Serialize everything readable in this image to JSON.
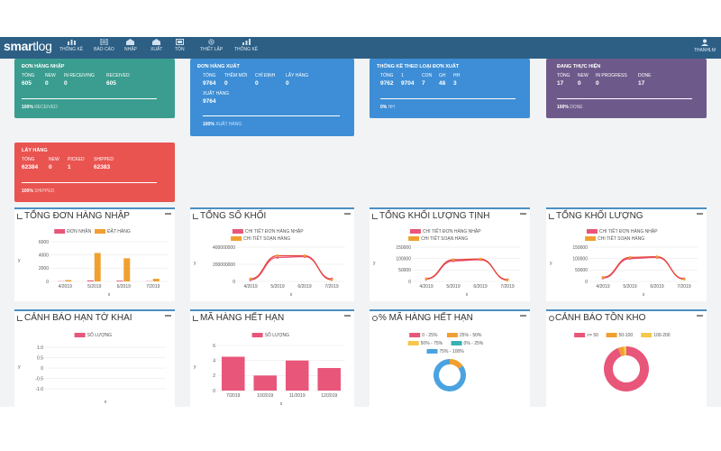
{
  "topbar": {
    "logo_main": "smar",
    "logo_tail": "tlog",
    "nav": [
      "THỐNG KÊ",
      "BÁO CÁO",
      "NHẬP",
      "XUẤT",
      "TỒN",
      "THIẾT LẬP",
      "THỐNG KÊ"
    ],
    "user": "THANHLM"
  },
  "cards": {
    "nhap": {
      "title": "ĐƠN HÀNG NHẬP",
      "labels": [
        "TỔNG",
        "NEW",
        "IN RECEIVING",
        "RECEIVED"
      ],
      "values": [
        "605",
        "0",
        "0",
        "605"
      ],
      "percent": "100%",
      "status": "RECEIVED",
      "color": "#3a9d8f"
    },
    "xuat": {
      "title": "ĐƠN HÀNG XUẤT",
      "labels": [
        "TỔNG",
        "THÊM MỚI",
        "CHỈ ĐỊNH",
        "LẤY HÀNG"
      ],
      "values": [
        "9764",
        "0",
        "0",
        "0"
      ],
      "extra_label": "XUẤT HÀNG",
      "extra_value": "9764",
      "percent": "100%",
      "status": "XUẤT HÀNG",
      "color": "#3d8ed6"
    },
    "loai": {
      "title": "THỐNG KÊ THEO LOẠI ĐƠN XUẤT",
      "labels": [
        "TỔNG",
        "1",
        "CON",
        "GH",
        "HH"
      ],
      "values": [
        "9762",
        "9704",
        "7",
        "48",
        "3"
      ],
      "percent": "0%",
      "status": "HH",
      "color": "#3d8ed6"
    },
    "thuchien": {
      "title": "ĐANG THỰC HIỆN",
      "labels": [
        "TỔNG",
        "NEW",
        "IN PROGRESS",
        "DONE"
      ],
      "values": [
        "17",
        "0",
        "0",
        "17"
      ],
      "percent": "100%",
      "status": "DONE",
      "color": "#6e5a8a"
    },
    "layhang": {
      "title": "LẤY HÀNG",
      "labels": [
        "TỔNG",
        "NEW",
        "PICKED",
        "SHIPPED"
      ],
      "values": [
        "62384",
        "0",
        "1",
        "62383"
      ],
      "percent": "100%",
      "status": "SHIPPED",
      "color": "#e95451"
    }
  },
  "colors": {
    "pink": "#e8567a",
    "orange": "#f0a030",
    "red_line": "#e5443a",
    "teal": "#38b2b0",
    "blue": "#4aa3e0",
    "yellow": "#f5c84a"
  },
  "panels": {
    "nhap": {
      "title": "TỔNG ĐƠN HÀNG NHẬP",
      "legend": [
        "ĐƠN NHẬN",
        "ĐẶT HÀNG"
      ],
      "yaxis": "y",
      "xaxis": "x"
    },
    "khoi": {
      "title": "TỔNG SỐ KHỐI",
      "legend": [
        "CHI TIẾT ĐƠN HÀNG NHẬP",
        "CHI TIẾT SOẠN HÀNG"
      ],
      "yaxis": "y",
      "xaxis": "x"
    },
    "tinh": {
      "title": "TỔNG KHỐI LƯỢNG TỊNH",
      "legend": [
        "CHI TIẾT ĐƠN HÀNG NHẬP",
        "CHI TIẾT SOẠN HÀNG"
      ],
      "yaxis": "y",
      "xaxis": "x"
    },
    "kl": {
      "title": "TỔNG KHỐI LƯỢNG",
      "legend": [
        "CHI TIẾT ĐƠN HÀNG NHẬP",
        "CHI TIẾT SOẠN HÀNG"
      ],
      "yaxis": "y",
      "xaxis": "x"
    },
    "tokhai": {
      "title": "CẢNH BÁO HẠN TỜ KHAI",
      "legend": [
        "SỐ LƯỢNG"
      ],
      "yaxis": "y",
      "xaxis": "x"
    },
    "hethan": {
      "title": "MÃ HÀNG HẾT HẠN",
      "legend": [
        "SỐ LƯỢNG"
      ],
      "yaxis": "y",
      "xaxis": "x"
    },
    "pct": {
      "title": "% MÃ HÀNG HẾT HẠN",
      "legend": [
        "0 - 25%",
        "25% - 50%",
        "50% - 75%",
        "0% - 25%",
        "75% - 100%"
      ]
    },
    "ton": {
      "title": "CẢNH BÁO TỒN KHO",
      "legend": [
        "<= 50",
        "50-100",
        "100-200"
      ]
    }
  },
  "chart_data": [
    {
      "id": "nhap",
      "type": "bar",
      "categories": [
        "4/2019",
        "5/2019",
        "6/2019",
        "7/2019"
      ],
      "series": [
        {
          "name": "ĐƠN NHẬN",
          "values": [
            40,
            150,
            120,
            40
          ]
        },
        {
          "name": "ĐẶT HÀNG",
          "values": [
            200,
            4300,
            3500,
            400
          ]
        }
      ],
      "yticks": [
        "0",
        "2000",
        "4000",
        "6000"
      ],
      "ylim": [
        0,
        6000
      ],
      "xlabel": "x",
      "ylabel": "y"
    },
    {
      "id": "khoi",
      "type": "line",
      "categories": [
        "4/2019",
        "5/2019",
        "6/2019",
        "7/2019"
      ],
      "series": [
        {
          "name": "CHI TIẾT ĐƠN HÀNG NHẬP",
          "values": [
            20000000,
            280000000,
            290000000,
            30000000
          ]
        },
        {
          "name": "CHI TIẾT SOẠN HÀNG",
          "values": [
            30000000,
            300000000,
            300000000,
            20000000
          ]
        }
      ],
      "yticks": [
        "0",
        "200000000",
        "400000000"
      ],
      "ylim": [
        0,
        400000000
      ],
      "xlabel": "x",
      "ylabel": "y"
    },
    {
      "id": "tinh",
      "type": "line",
      "categories": [
        "4/2019",
        "5/2019",
        "6/2019",
        "7/2019"
      ],
      "series": [
        {
          "name": "CHI TIẾT ĐƠN HÀNG NHẬP",
          "values": [
            10000,
            90000,
            95000,
            8000
          ]
        },
        {
          "name": "CHI TIẾT SOẠN HÀNG",
          "values": [
            12000,
            95000,
            98000,
            6000
          ]
        }
      ],
      "yticks": [
        "0",
        "50000",
        "100000",
        "150000"
      ],
      "ylim": [
        0,
        150000
      ],
      "xlabel": "x",
      "ylabel": "y"
    },
    {
      "id": "kl",
      "type": "line",
      "categories": [
        "4/2019",
        "5/2019",
        "6/2019",
        "7/2019"
      ],
      "series": [
        {
          "name": "CHI TIẾT ĐƠN HÀNG NHẬP",
          "values": [
            15000,
            100000,
            105000,
            12000
          ]
        },
        {
          "name": "CHI TIẾT SOẠN HÀNG",
          "values": [
            18000,
            105000,
            108000,
            10000
          ]
        }
      ],
      "yticks": [
        "0",
        "50000",
        "100000",
        "150000"
      ],
      "ylim": [
        0,
        150000
      ],
      "xlabel": "x",
      "ylabel": "y"
    },
    {
      "id": "tokhai",
      "type": "bar",
      "categories": [],
      "series": [
        {
          "name": "SỐ LƯỢNG",
          "values": []
        }
      ],
      "yticks": [
        "-1.0",
        "-0.5",
        "0",
        "0.5",
        "1.0"
      ],
      "ylim": [
        -1,
        1
      ],
      "xlabel": "x",
      "ylabel": "y"
    },
    {
      "id": "hethan",
      "type": "bar",
      "categories": [
        "7/2019",
        "10/2019",
        "11/2019",
        "12/2019"
      ],
      "series": [
        {
          "name": "SỐ LƯỢNG",
          "values": [
            4.5,
            2,
            4,
            3
          ]
        }
      ],
      "yticks": [
        "0",
        "2",
        "4",
        "6"
      ],
      "ylim": [
        0,
        6
      ],
      "xlabel": "x",
      "ylabel": "y"
    },
    {
      "id": "pct",
      "type": "pie",
      "labels": [
        "0 - 25%",
        "25% - 50%",
        "50% - 75%",
        "0% - 25%",
        "75% - 100%"
      ],
      "values": [
        0,
        15,
        0,
        0,
        85
      ]
    },
    {
      "id": "ton",
      "type": "pie",
      "labels": [
        "<= 50",
        "50-100",
        "100-200"
      ],
      "values": [
        94,
        4,
        2
      ]
    }
  ]
}
